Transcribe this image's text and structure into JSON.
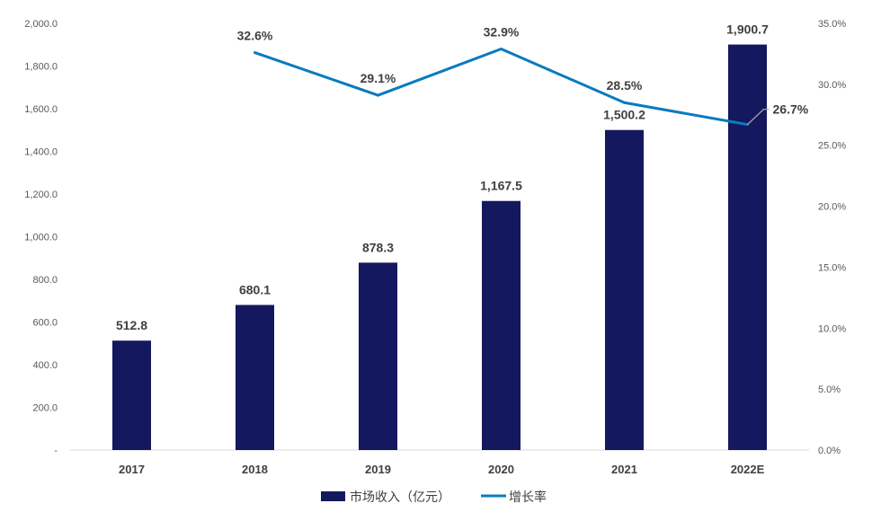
{
  "chart_data": {
    "type": "bar+line",
    "categories": [
      "2017",
      "2018",
      "2019",
      "2020",
      "2021",
      "2022E"
    ],
    "series": [
      {
        "name": "市场收入（亿元）",
        "type": "bar",
        "axis": "left",
        "values": [
          512.8,
          680.1,
          878.3,
          1167.5,
          1500.2,
          1900.7
        ],
        "labels": [
          "512.8",
          "680.1",
          "878.3",
          "1,167.5",
          "1,500.2",
          "1,900.7"
        ],
        "color": "#14185e"
      },
      {
        "name": "增长率",
        "type": "line",
        "axis": "right",
        "values": [
          null,
          32.6,
          29.1,
          32.9,
          28.5,
          26.7
        ],
        "labels": [
          null,
          "32.6%",
          "29.1%",
          "32.9%",
          "28.5%",
          "26.7%"
        ],
        "color": "#0a7abf"
      }
    ],
    "left_axis": {
      "range": [
        0,
        2000
      ],
      "ticks": [
        "-",
        "200.0",
        "400.0",
        "600.0",
        "800.0",
        "1,000.0",
        "1,200.0",
        "1,400.0",
        "1,600.0",
        "1,800.0",
        "2,000.0"
      ]
    },
    "right_axis": {
      "range": [
        0,
        35
      ],
      "ticks": [
        "0.0%",
        "5.0%",
        "10.0%",
        "15.0%",
        "20.0%",
        "25.0%",
        "30.0%",
        "35.0%"
      ]
    },
    "grid": false,
    "legend": {
      "placement": "bottom",
      "items": [
        "市场收入（亿元）",
        "增长率"
      ]
    }
  }
}
